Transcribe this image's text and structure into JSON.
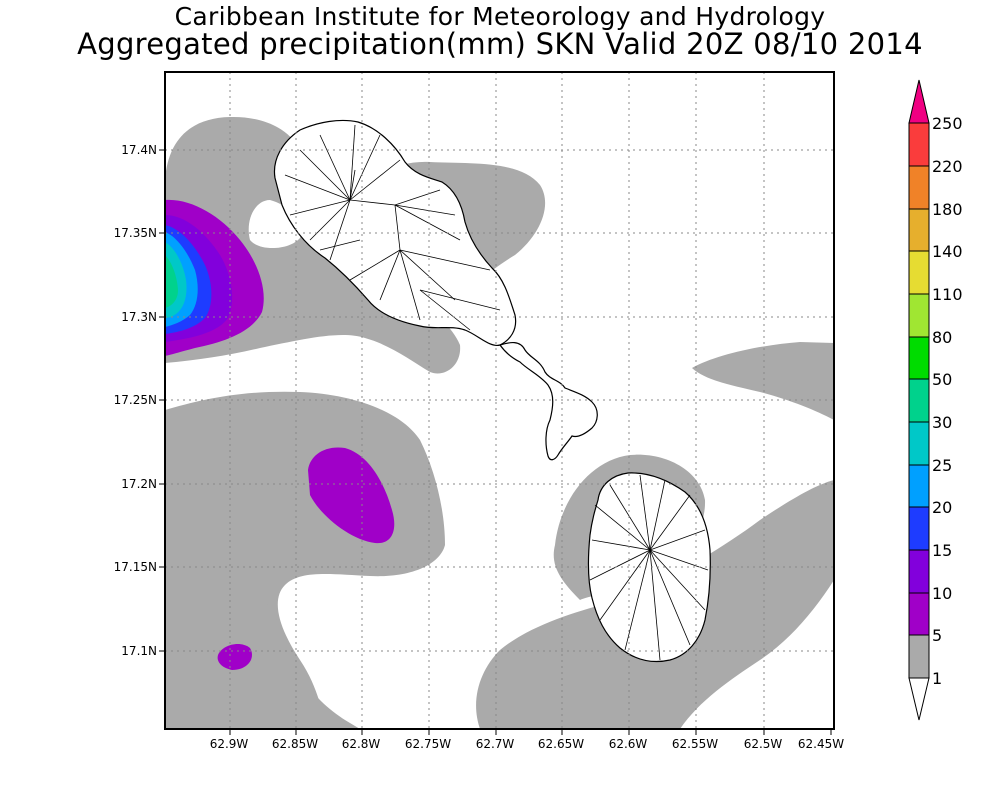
{
  "title_line1": "Caribbean Institute for Meteorology and Hydrology",
  "title_line2": "Aggregated precipitation(mm) SKN Valid 20Z 08/10 2014",
  "axes": {
    "lon_labels": [
      "62.9W",
      "62.85W",
      "62.8W",
      "62.75W",
      "62.7W",
      "62.65W",
      "62.6W",
      "62.55W",
      "62.5W",
      "62.45W"
    ],
    "lat_labels": [
      "17.4N",
      "17.35N",
      "17.3N",
      "17.25N",
      "17.2N",
      "17.15N",
      "17.1N"
    ]
  },
  "colorbar": {
    "labels": [
      "1",
      "5",
      "10",
      "15",
      "20",
      "25",
      "30",
      "50",
      "80",
      "110",
      "140",
      "180",
      "220",
      "250"
    ],
    "colors": [
      "#aaaaaa",
      "#a000c8",
      "#8200dc",
      "#1e3cff",
      "#00a0ff",
      "#00c8c8",
      "#00d28c",
      "#00dc00",
      "#a0e632",
      "#e6dc32",
      "#e6af2d",
      "#f08228",
      "#fa3c3c",
      "#f00082"
    ]
  },
  "islands": [
    "St. Kitts",
    "Nevis"
  ]
}
